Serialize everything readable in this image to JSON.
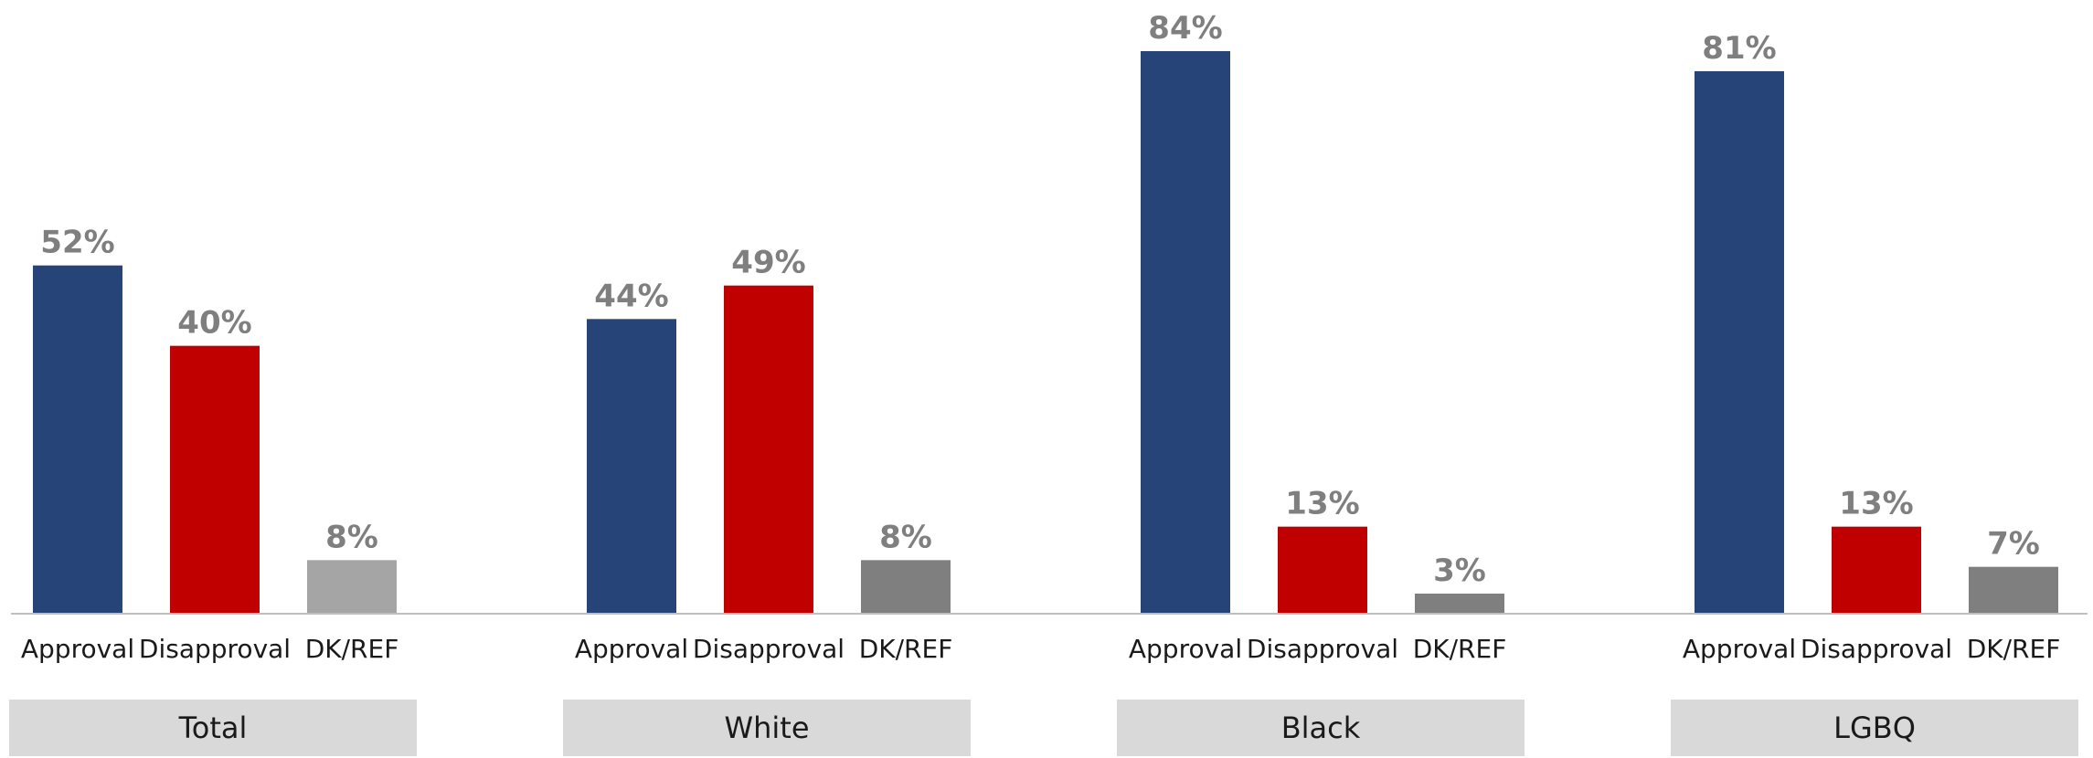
{
  "chart_data": {
    "type": "bar",
    "title": "",
    "xlabel": "",
    "ylabel": "",
    "ylim": [
      0,
      84
    ],
    "grid": false,
    "categories": [
      "Approval",
      "Disapproval",
      "DK/REF"
    ],
    "groups": [
      {
        "name": "Total",
        "values": [
          52,
          40,
          8
        ],
        "labels": [
          "52%",
          "40%",
          "8%"
        ],
        "colors": [
          "#264478",
          "#c00000",
          "#a5a5a5"
        ]
      },
      {
        "name": "White",
        "values": [
          44,
          49,
          8
        ],
        "labels": [
          "44%",
          "49%",
          "8%"
        ],
        "colors": [
          "#264478",
          "#c00000",
          "#7f7f7f"
        ]
      },
      {
        "name": "Black",
        "values": [
          84,
          13,
          3
        ],
        "labels": [
          "84%",
          "13%",
          "3%"
        ],
        "colors": [
          "#264478",
          "#c00000",
          "#7f7f7f"
        ]
      },
      {
        "name": "LGBQ",
        "values": [
          81,
          13,
          7
        ],
        "labels": [
          "81%",
          "13%",
          "7%"
        ],
        "colors": [
          "#264478",
          "#c00000",
          "#7f7f7f"
        ]
      }
    ],
    "colors": {
      "axis": "#bfbfbf",
      "group_box": "#d9d9d9",
      "value_label": "#7f7f7f"
    }
  }
}
